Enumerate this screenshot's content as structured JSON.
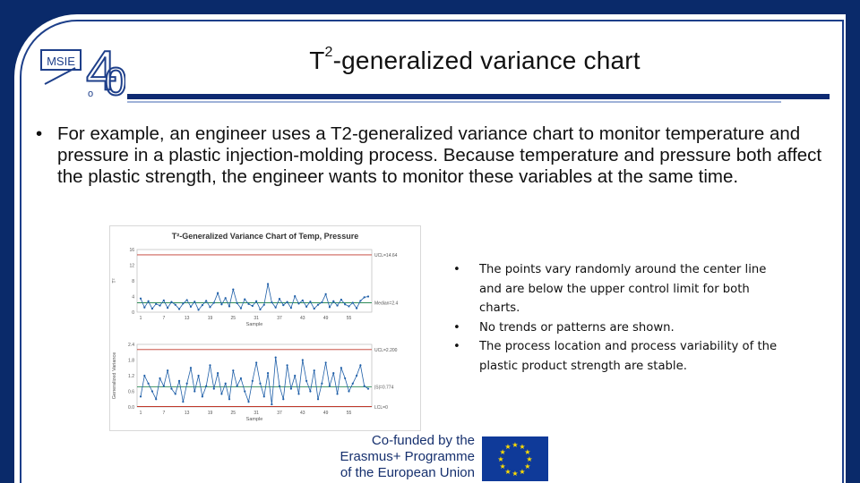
{
  "title": {
    "main": "T",
    "sup": "2",
    "rest": "-generalized variance chart"
  },
  "logo": {
    "letters": "MSIE",
    "numeral": "4",
    "digit": "0",
    "sub": "o"
  },
  "intro_bullet": "For example, an engineer uses a T2-generalized variance chart to monitor temperature and pressure in a plastic injection-molding process. Because temperature and pressure both affect the plastic strength, the engineer wants to monitor these variables at the same time.",
  "observations": [
    "The points vary randomly around the center line and are below the upper control limit for both charts.",
    "No trends or patterns are shown.",
    "The process location and process variability of the plastic product strength are stable."
  ],
  "footer": {
    "line1": "Co-funded by the",
    "line2": "Erasmus+ Programme",
    "line3": "of the European Union"
  },
  "colors": {
    "background": "#0a2a6a",
    "series": "#1f5fa8",
    "limit": "#c0392b",
    "center": "#2e8b57"
  },
  "chart_data": [
    {
      "type": "line",
      "title": "T²-Generalized Variance Chart of Temp, Pressure",
      "ylabel": "T²",
      "xlabel": "Sample",
      "x_ticks": [
        "1",
        "7",
        "13",
        "19",
        "25",
        "31",
        "37",
        "43",
        "49",
        "55"
      ],
      "y_ticks": [
        "0",
        "4",
        "8",
        "12",
        "16"
      ],
      "ylim": [
        0,
        16
      ],
      "ucl_label": "UCL=14.64",
      "center_label": "Median=2.4",
      "ucl": 14.64,
      "center": 2.4,
      "values": [
        3.5,
        1.2,
        2.8,
        0.9,
        2.1,
        1.7,
        3.0,
        1.1,
        2.6,
        1.9,
        0.8,
        2.2,
        3.1,
        1.4,
        2.7,
        0.6,
        1.8,
        2.9,
        1.3,
        2.4,
        4.9,
        2.0,
        3.6,
        1.5,
        5.8,
        2.3,
        1.0,
        3.3,
        2.1,
        1.6,
        2.8,
        0.7,
        1.9,
        7.2,
        2.5,
        1.2,
        3.4,
        1.8,
        2.6,
        1.1,
        4.1,
        2.2,
        3.0,
        1.4,
        2.7,
        0.9,
        1.9,
        2.5,
        4.6,
        1.3,
        2.8,
        1.7,
        3.2,
        2.0,
        1.5,
        2.4,
        1.0,
        2.9,
        3.8,
        4.0
      ]
    },
    {
      "type": "line",
      "title": "",
      "ylabel": "Generalized Variance",
      "xlabel": "Sample",
      "x_ticks": [
        "1",
        "7",
        "13",
        "19",
        "25",
        "31",
        "37",
        "43",
        "49",
        "55"
      ],
      "y_ticks": [
        "0.0",
        "0.6",
        "1.2",
        "1.8",
        "2.4"
      ],
      "ylim": [
        0,
        2.4
      ],
      "ucl_label": "UCL=2.200",
      "center_label": "|S|=0.774",
      "lcl_label": "LCL=0",
      "ucl": 2.2,
      "center": 0.774,
      "lcl": 0,
      "values": [
        0.4,
        1.2,
        0.9,
        0.6,
        0.3,
        1.1,
        0.8,
        1.4,
        0.7,
        0.5,
        1.0,
        0.2,
        0.9,
        1.5,
        0.6,
        1.2,
        0.4,
        0.8,
        1.6,
        0.7,
        1.3,
        0.5,
        0.9,
        0.3,
        1.4,
        0.8,
        1.1,
        0.6,
        0.2,
        1.0,
        1.7,
        0.9,
        0.4,
        1.3,
        0.1,
        1.9,
        0.8,
        0.3,
        1.6,
        0.7,
        1.2,
        0.5,
        1.8,
        1.0,
        0.6,
        1.4,
        0.3,
        0.9,
        1.7,
        0.8,
        1.3,
        0.5,
        1.5,
        1.1,
        0.6,
        0.9,
        1.2,
        1.6,
        0.8,
        0.7
      ]
    }
  ]
}
